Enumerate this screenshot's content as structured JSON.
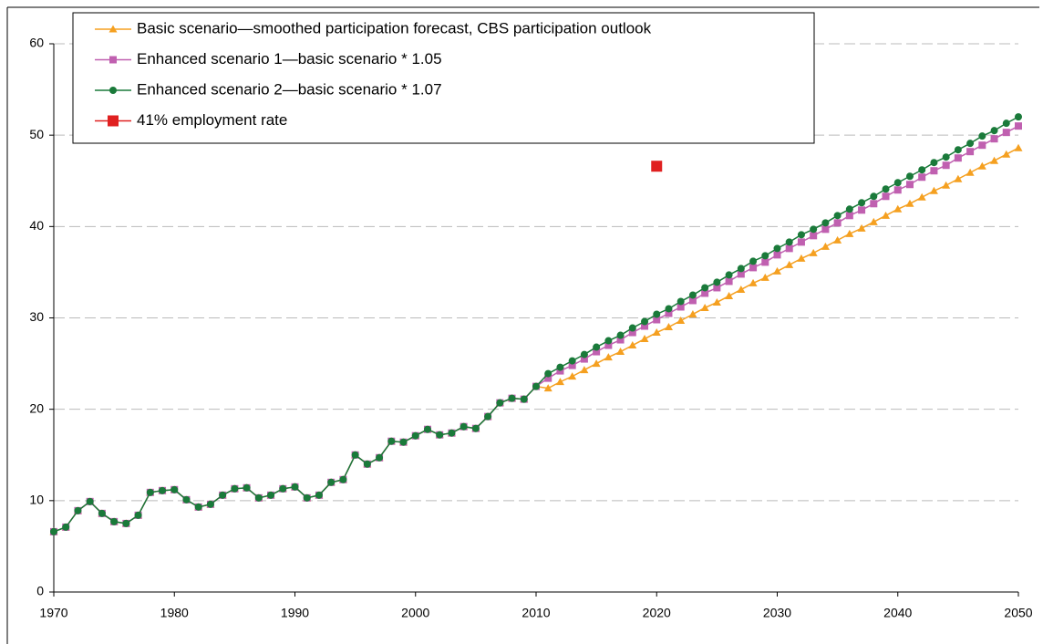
{
  "chart_data": {
    "type": "line",
    "x": [
      1970,
      1971,
      1972,
      1973,
      1974,
      1975,
      1976,
      1977,
      1978,
      1979,
      1980,
      1981,
      1982,
      1983,
      1984,
      1985,
      1986,
      1987,
      1988,
      1989,
      1990,
      1991,
      1992,
      1993,
      1994,
      1995,
      1996,
      1997,
      1998,
      1999,
      2000,
      2001,
      2002,
      2003,
      2004,
      2005,
      2006,
      2007,
      2008,
      2009,
      2010,
      2011,
      2012,
      2013,
      2014,
      2015,
      2016,
      2017,
      2018,
      2019,
      2020,
      2021,
      2022,
      2023,
      2024,
      2025,
      2026,
      2027,
      2028,
      2029,
      2030,
      2031,
      2032,
      2033,
      2034,
      2035,
      2036,
      2037,
      2038,
      2039,
      2040,
      2041,
      2042,
      2043,
      2044,
      2045,
      2046,
      2047,
      2048,
      2049,
      2050
    ],
    "series": [
      {
        "name": "Basic scenario—smoothed participation forecast, CBS participation outlook",
        "color": "#f5a020",
        "marker": "triangle",
        "values": [
          6.6,
          7.1,
          8.9,
          9.9,
          8.6,
          7.7,
          7.5,
          8.4,
          10.9,
          11.1,
          11.2,
          10.1,
          9.3,
          9.6,
          10.6,
          11.3,
          11.4,
          10.3,
          10.6,
          11.3,
          11.5,
          10.3,
          10.6,
          12.0,
          12.3,
          15.0,
          14.0,
          14.7,
          16.5,
          16.4,
          17.1,
          17.8,
          17.2,
          17.4,
          18.1,
          17.9,
          19.2,
          20.7,
          21.2,
          21.1,
          22.5,
          22.3,
          23.0,
          23.6,
          24.3,
          25.0,
          25.7,
          26.3,
          27.0,
          27.7,
          28.4,
          29.0,
          29.7,
          30.4,
          31.1,
          31.7,
          32.4,
          33.1,
          33.8,
          34.4,
          35.1,
          35.8,
          36.5,
          37.1,
          37.8,
          38.5,
          39.2,
          39.8,
          40.5,
          41.2,
          41.9,
          42.5,
          43.2,
          43.9,
          44.5,
          45.2,
          45.9,
          46.6,
          47.2,
          47.9,
          48.6
        ]
      },
      {
        "name": "Enhanced scenario 1—basic scenario * 1.05",
        "color": "#c060b0",
        "marker": "square",
        "values": [
          6.6,
          7.1,
          8.9,
          9.9,
          8.6,
          7.7,
          7.5,
          8.4,
          10.9,
          11.1,
          11.2,
          10.1,
          9.3,
          9.6,
          10.6,
          11.3,
          11.4,
          10.3,
          10.6,
          11.3,
          11.5,
          10.3,
          10.6,
          12.0,
          12.3,
          15.0,
          14.0,
          14.7,
          16.5,
          16.4,
          17.1,
          17.8,
          17.2,
          17.4,
          18.1,
          17.9,
          19.2,
          20.7,
          21.2,
          21.1,
          22.5,
          23.4,
          24.2,
          24.8,
          25.5,
          26.3,
          27.0,
          27.6,
          28.4,
          29.1,
          29.8,
          30.5,
          31.2,
          31.9,
          32.7,
          33.3,
          34.0,
          34.8,
          35.5,
          36.1,
          36.9,
          37.6,
          38.3,
          39.0,
          39.7,
          40.4,
          41.2,
          41.8,
          42.5,
          43.3,
          44.0,
          44.6,
          45.4,
          46.1,
          46.7,
          47.5,
          48.2,
          48.9,
          49.6,
          50.3,
          51.0
        ]
      },
      {
        "name": "Enhanced scenario 2—basic scenario * 1.07",
        "color": "#1a7a3a",
        "marker": "circle",
        "values": [
          6.6,
          7.1,
          8.9,
          9.9,
          8.6,
          7.7,
          7.5,
          8.4,
          10.9,
          11.1,
          11.2,
          10.1,
          9.3,
          9.6,
          10.6,
          11.3,
          11.4,
          10.3,
          10.6,
          11.3,
          11.5,
          10.3,
          10.6,
          12.0,
          12.3,
          15.0,
          14.0,
          14.7,
          16.5,
          16.4,
          17.1,
          17.8,
          17.2,
          17.4,
          18.1,
          17.9,
          19.2,
          20.7,
          21.2,
          21.1,
          22.5,
          23.9,
          24.6,
          25.3,
          26.0,
          26.8,
          27.5,
          28.1,
          28.9,
          29.6,
          30.4,
          31.0,
          31.8,
          32.5,
          33.3,
          33.9,
          34.7,
          35.4,
          36.2,
          36.8,
          37.6,
          38.3,
          39.1,
          39.7,
          40.4,
          41.2,
          41.9,
          42.6,
          43.3,
          44.1,
          44.8,
          45.5,
          46.2,
          47.0,
          47.6,
          48.4,
          49.1,
          49.9,
          50.5,
          51.3,
          52.0
        ]
      },
      {
        "name": "41% employment rate",
        "color": "#e02020",
        "marker": "bigsquare",
        "x": [
          2020
        ],
        "values": [
          46.6
        ]
      }
    ],
    "xlim": [
      1970,
      2050
    ],
    "xticks": [
      1970,
      1980,
      1990,
      2000,
      2010,
      2020,
      2030,
      2040,
      2050
    ],
    "ylim": [
      0,
      60
    ],
    "yticks": [
      0,
      10,
      20,
      30,
      40,
      50,
      60
    ],
    "grid": true,
    "legend": "top-left"
  }
}
